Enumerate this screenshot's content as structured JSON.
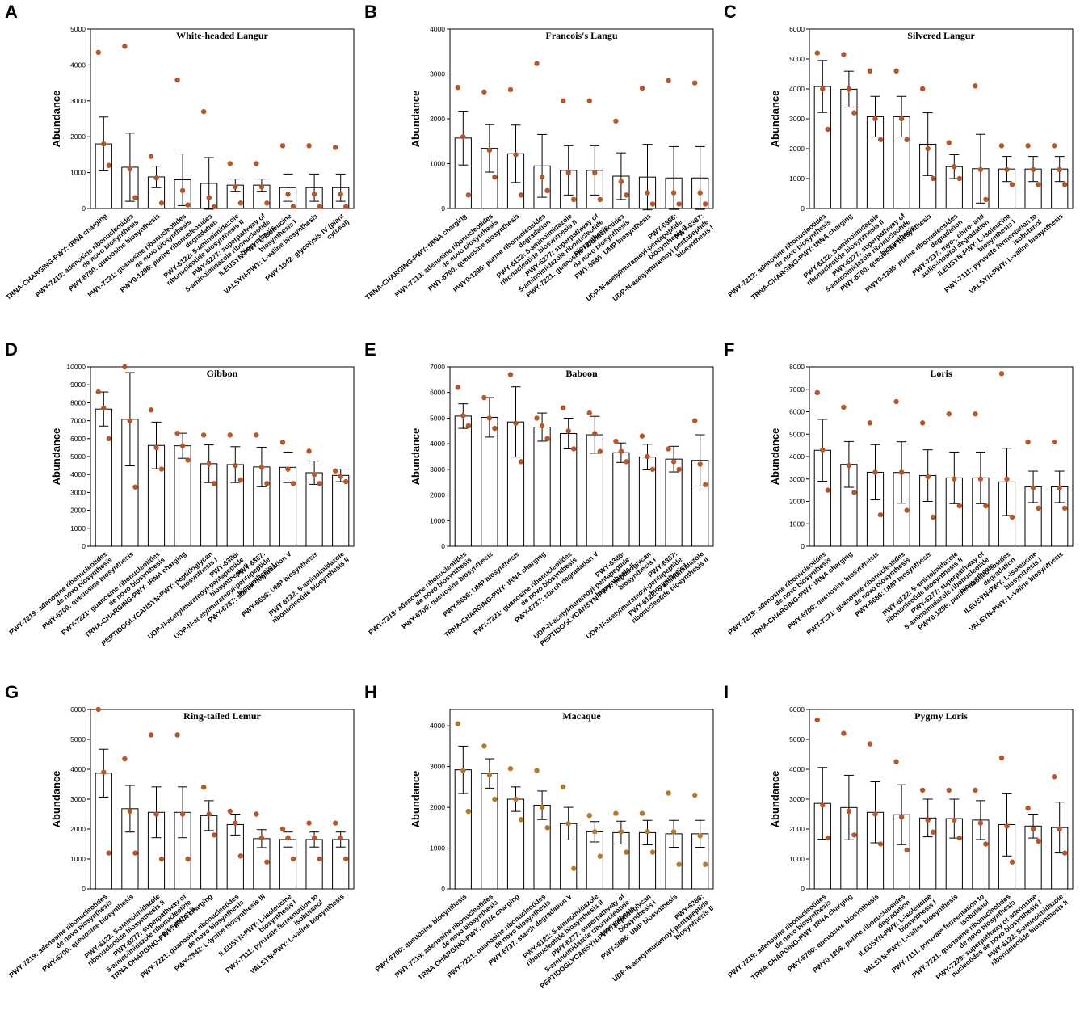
{
  "chart_data": [
    {
      "panel": "A",
      "type": "bar",
      "title": "White-headed Langur",
      "y_label": "Abundance",
      "color": "#b5572e",
      "ylim": [
        0,
        5000
      ],
      "yticks": [
        0,
        1000,
        2000,
        3000,
        4000,
        5000
      ],
      "categories": [
        "TRNA-CHARGING-PWY: tRNA charging",
        "PWY-7219: adenosine ribonucleotides de novo biosynthesis",
        "PWY-6700: queuosine biosynthesis",
        "PWY-7221: guanosine ribonucleotides de novo biosynthesis",
        "PWY0-1296: purine ribonucleosides degradation",
        "PWY-6122: 5-aminoimidazole ribonucleotide biosynthesis II",
        "PWY-6277: superpathway of 5-aminoimidazole ribonucleotide biosynthesis",
        "ILEUSYN-PWY: L-isoleucine biosynthesis I",
        "VALSYN-PWY: L-valine biosynthesis",
        "PWY-1042: glycolysis IV (plant cytosol)"
      ],
      "values": [
        1800,
        1150,
        880,
        800,
        700,
        650,
        650,
        580,
        580,
        580
      ],
      "errors": [
        750,
        950,
        300,
        720,
        720,
        170,
        170,
        380,
        380,
        380
      ],
      "points": [
        [
          4350,
          1800,
          1200
        ],
        [
          4520,
          1100,
          300
        ],
        [
          1450,
          850,
          150
        ],
        [
          3580,
          500,
          100
        ],
        [
          2700,
          300,
          50
        ],
        [
          1250,
          600,
          150
        ],
        [
          1250,
          600,
          150
        ],
        [
          1750,
          400,
          50
        ],
        [
          1750,
          400,
          50
        ],
        [
          1700,
          400,
          50
        ]
      ]
    },
    {
      "panel": "B",
      "type": "bar",
      "title": "Francois's Langu",
      "y_label": "Abundance",
      "color": "#b5572e",
      "ylim": [
        0,
        4000
      ],
      "yticks": [
        0,
        1000,
        2000,
        3000,
        4000
      ],
      "categories": [
        "TRNA-CHARGING-PWY: tRNA charging",
        "PWY-7219: adenosine ribonucleotides de novo biosynthesis",
        "PWY-6700: queuosine biosynthesis",
        "PWY0-1296: purine ribonucleosides degradation",
        "PWY-6122: 5-aminoimidazole ribonucleotide biosynthesis II",
        "PWY-6277: superpathway of 5-aminoimidazole ribonucleotide biosynthesis",
        "PWY-7221: guanosine ribonucleotides de novo biosynthesis",
        "PWY-5686: UMP biosynthesis",
        "PWY-6386: UDP-N-acetylmuramoyl-pentapeptide biosynthesis II",
        "PWY-6387: UDP-N-acetylmuramoyl-pentapeptide biosynthesis I"
      ],
      "values": [
        1570,
        1340,
        1220,
        950,
        850,
        850,
        720,
        700,
        680,
        680
      ],
      "errors": [
        600,
        530,
        640,
        700,
        550,
        550,
        520,
        730,
        700,
        700
      ],
      "points": [
        [
          2700,
          1600,
          300
        ],
        [
          2600,
          1300,
          700
        ],
        [
          2650,
          1200,
          300
        ],
        [
          3230,
          700,
          400
        ],
        [
          2400,
          800,
          200
        ],
        [
          2400,
          800,
          200
        ],
        [
          1950,
          600,
          300
        ],
        [
          2680,
          350,
          100
        ],
        [
          2850,
          350,
          100
        ],
        [
          2800,
          350,
          100
        ]
      ]
    },
    {
      "panel": "C",
      "type": "bar",
      "title": "Silvered Langur",
      "y_label": "Abundance",
      "color": "#b5572e",
      "ylim": [
        0,
        6000
      ],
      "yticks": [
        0,
        1000,
        2000,
        3000,
        4000,
        5000,
        6000
      ],
      "categories": [
        "PWY-7219: adenosine ribonucleotides de novo biosynthesis",
        "TRNA-CHARGING-PWY: tRNA charging",
        "PWY-6122: 5-aminoimidazole ribonucleotide biosynthesis II",
        "PWY-6277: superpathway of 5-aminoimidazole ribonucleotide biosynthesis",
        "PWY-6700: queuosine biosynthesis",
        "PWY0-1296: purine ribonucleosides degradation",
        "PWY-7237: myo-, chiro- and scillo-inositol degradation",
        "ILEUSYN-PWY: L-isoleucine biosynthesis I",
        "PWY-7111: pyruvate fermentation to isobutanol",
        "VALSYN-PWY: L-valine biosynthesis"
      ],
      "values": [
        4080,
        3990,
        3070,
        3070,
        2150,
        1400,
        1330,
        1320,
        1320,
        1320
      ],
      "errors": [
        870,
        600,
        680,
        680,
        1050,
        400,
        1150,
        420,
        420,
        420
      ],
      "points": [
        [
          5200,
          4000,
          2650
        ],
        [
          5150,
          4000,
          3200
        ],
        [
          4600,
          3000,
          2300
        ],
        [
          4600,
          3000,
          2300
        ],
        [
          4000,
          2000,
          1000
        ],
        [
          2200,
          1400,
          1000
        ],
        [
          4100,
          1300,
          300
        ],
        [
          2100,
          1300,
          800
        ],
        [
          2100,
          1300,
          800
        ],
        [
          2100,
          1300,
          800
        ]
      ]
    },
    {
      "panel": "D",
      "type": "bar",
      "title": "Gibbon",
      "y_label": "Abundance",
      "color": "#b5572e",
      "ylim": [
        0,
        10000
      ],
      "yticks": [
        0,
        1000,
        2000,
        3000,
        4000,
        5000,
        6000,
        7000,
        8000,
        9000,
        10000
      ],
      "categories": [
        "PWY-7219: adenosine ribonucleotides de novo biosynthesis",
        "PWY-6700: queuosine biosynthesis",
        "PWY-7221: guanosine ribonucleotides de novo biosynthesis",
        "TRNA-CHARGING-PWY: tRNA charging",
        "PEPTIDOGLYCANSYN-PWY: peptidoglycan biosynthesis I",
        "PWY-6386: UDP-N-acetylmuramoyl-pentapeptide biosynthesis II",
        "PWY-6387: UDP-N-acetylmuramoyl-pentapeptide biosynthesis I",
        "PWY-6737: starch degradation V",
        "PWY-5686: UMP biosynthesis",
        "PWY-6122: 5-aminoimidazole ribonucleotide biosynthesis II"
      ],
      "values": [
        7650,
        7080,
        5620,
        5600,
        4600,
        4550,
        4420,
        4400,
        4100,
        3950
      ],
      "errors": [
        950,
        2600,
        1300,
        700,
        1050,
        1000,
        1100,
        850,
        650,
        350
      ],
      "points": [
        [
          8600,
          7700,
          6000
        ],
        [
          10000,
          7000,
          3300
        ],
        [
          7600,
          5500,
          4300
        ],
        [
          6300,
          5600,
          4800
        ],
        [
          6200,
          4600,
          3500
        ],
        [
          6200,
          4500,
          3700
        ],
        [
          6200,
          4400,
          3500
        ],
        [
          5800,
          4300,
          3500
        ],
        [
          5300,
          4000,
          3500
        ],
        [
          4200,
          3900,
          3600
        ]
      ]
    },
    {
      "panel": "E",
      "type": "bar",
      "title": "Baboon",
      "y_label": "Abundance",
      "color": "#b5572e",
      "ylim": [
        0,
        7000
      ],
      "yticks": [
        0,
        1000,
        2000,
        3000,
        4000,
        5000,
        6000,
        7000
      ],
      "categories": [
        "PWY-7219: adenosine ribonucleotides de novo biosynthesis",
        "PWY-6700: queuosine biosynthesis",
        "PWY-5686: UMP biosynthesis",
        "TRNA-CHARGING-PWY: tRNA charging",
        "PWY-7221: guanosine ribonucleotides de novo biosynthesis",
        "PWY-6737: starch degradation V",
        "PWY-6386: UDP-N-acetylmuramoyl-pentapeptide biosynthesis II",
        "PEPTIDOGLYCANSYN-PWY: peptidoglycan biosynthesis I",
        "PWY-6387: UDP-N-acetylmuramoyl-pentapeptide biosynthesis I",
        "PWY-6122: 5-aminoimidazole ribonucleotide biosynthesis II"
      ],
      "values": [
        5080,
        5030,
        4850,
        4650,
        4400,
        4350,
        3650,
        3480,
        3400,
        3350
      ],
      "errors": [
        480,
        770,
        1370,
        550,
        600,
        720,
        380,
        500,
        500,
        1000
      ],
      "points": [
        [
          6200,
          5100,
          4700
        ],
        [
          5800,
          5000,
          4600
        ],
        [
          6700,
          4800,
          3300
        ],
        [
          5000,
          4700,
          4200
        ],
        [
          5400,
          4500,
          3800
        ],
        [
          5200,
          4400,
          3700
        ],
        [
          4100,
          3700,
          3300
        ],
        [
          4300,
          3500,
          3000
        ],
        [
          3800,
          3300,
          3000
        ],
        [
          4900,
          3200,
          2400
        ]
      ]
    },
    {
      "panel": "F",
      "type": "bar",
      "title": "Loris",
      "y_label": "Abundance",
      "color": "#b5572e",
      "ylim": [
        0,
        8000
      ],
      "yticks": [
        0,
        1000,
        2000,
        3000,
        4000,
        5000,
        6000,
        7000,
        8000
      ],
      "categories": [
        "PWY-7219: adenosine ribonucleotides de novo biosynthesis",
        "TRNA-CHARGING-PWY: tRNA charging",
        "PWY-6700: queuosine biosynthesis",
        "PWY-7221: guanosine ribonucleotides de novo biosynthesis",
        "PWY-5686: UMP biosynthesis",
        "PWY-6122: 5-aminoimidazole ribonucleotide biosynthesis II",
        "PWY-6277: superpathway of 5-aminoimidazole ribonucleotide biosynthesis",
        "PWY0-1296: purine ribonucleosides degradation",
        "ILEUSYN-PWY: L-isoleucine biosynthesis I",
        "VALSYN-PWY: L-valine biosynthesis"
      ],
      "values": [
        4280,
        3650,
        3300,
        3290,
        3150,
        3050,
        3050,
        2870,
        2650,
        2650
      ],
      "errors": [
        1380,
        1020,
        1230,
        1370,
        1150,
        1150,
        1150,
        1500,
        700,
        700
      ],
      "points": [
        [
          6850,
          4300,
          2500
        ],
        [
          6200,
          3600,
          2400
        ],
        [
          5500,
          3300,
          1400
        ],
        [
          6450,
          3300,
          1600
        ],
        [
          5500,
          3100,
          1300
        ],
        [
          5900,
          3000,
          1800
        ],
        [
          5900,
          3000,
          1800
        ],
        [
          7700,
          3000,
          1300
        ],
        [
          4650,
          2600,
          1700
        ],
        [
          4650,
          2600,
          1700
        ]
      ]
    },
    {
      "panel": "G",
      "type": "bar",
      "title": "Ring-tailed Lemur",
      "y_label": "Abundance",
      "color": "#b5572e",
      "ylim": [
        0,
        6000
      ],
      "yticks": [
        0,
        1000,
        2000,
        3000,
        4000,
        5000,
        6000
      ],
      "categories": [
        "PWY-7219: adenosine ribonucleotides de novo biosynthesis",
        "PWY-6700: queuosine biosynthesis",
        "PWY-6122: 5-aminoimidazole ribonucleotide biosynthesis II",
        "PWY-6277: superpathway of 5-aminoimidazole ribonucleotide biosynthesis",
        "TRNA-CHARGING-PWY: tRNA charging",
        "PWY-7221: guanosine ribonucleotides de novo biosynthesis",
        "PWY-2942: L-lysine biosynthesis III",
        "ILEUSYN-PWY: L-isoleucine biosynthesis I",
        "PWY-7111: pyruvate fermentation to isobutanol",
        "VALSYN-PWY: L-valine biosynthesis"
      ],
      "values": [
        3870,
        2680,
        2560,
        2560,
        2450,
        2150,
        1680,
        1650,
        1650,
        1650
      ],
      "errors": [
        800,
        780,
        850,
        850,
        500,
        350,
        300,
        250,
        250,
        250
      ],
      "points": [
        [
          6000,
          3900,
          1200
        ],
        [
          4350,
          2600,
          1200
        ],
        [
          5150,
          2500,
          1000
        ],
        [
          5150,
          2500,
          1000
        ],
        [
          3400,
          2500,
          1800
        ],
        [
          2600,
          2200,
          1100
        ],
        [
          2500,
          1700,
          900
        ],
        [
          2000,
          1700,
          1000
        ],
        [
          2200,
          1700,
          1000
        ],
        [
          2200,
          1700,
          1000
        ]
      ]
    },
    {
      "panel": "H",
      "type": "bar",
      "title": "Macaque",
      "y_label": "Abundance",
      "color": "#b07a2f",
      "ylim": [
        0,
        4400
      ],
      "yticks": [
        0,
        1000,
        2000,
        3000,
        4000
      ],
      "categories": [
        "PWY-6700: queuosine biosynthesis",
        "PWY-7219: adenosine ribonucleotides de novo biosynthesis",
        "TRNA-CHARGING-PWY: tRNA charging",
        "PWY-7221: guanosine ribonucleotides de novo biosynthesis",
        "PWY-6737: starch degradation V",
        "PWY-6122: 5-aminoimidazole ribonucleotide biosynthesis II",
        "PWY-6277: superpathway of 5-aminoimidazole ribonucleotide biosynthesis",
        "PEPTIDOGLYCANSYN-PWY: peptidoglycan biosynthesis I",
        "PWY-5686: UMP biosynthesis",
        "PWY-6386: UDP-N-acetylmuramoyl-pentapeptide biosynthesis II"
      ],
      "values": [
        2920,
        2830,
        2200,
        2050,
        1600,
        1400,
        1380,
        1380,
        1350,
        1350
      ],
      "errors": [
        580,
        360,
        300,
        350,
        400,
        250,
        280,
        300,
        330,
        330
      ],
      "points": [
        [
          4050,
          2900,
          1900
        ],
        [
          3500,
          2800,
          2200
        ],
        [
          2950,
          2200,
          1700
        ],
        [
          2900,
          2000,
          1500
        ],
        [
          2500,
          1600,
          500
        ],
        [
          1800,
          1400,
          800
        ],
        [
          1850,
          1400,
          900
        ],
        [
          1850,
          1400,
          900
        ],
        [
          2350,
          1400,
          600
        ],
        [
          2300,
          1300,
          600
        ]
      ]
    },
    {
      "panel": "I",
      "type": "bar",
      "title": "Pygmy Loris",
      "y_label": "Abundance",
      "color": "#b5572e",
      "ylim": [
        0,
        6000
      ],
      "yticks": [
        0,
        1000,
        2000,
        3000,
        4000,
        5000,
        6000
      ],
      "categories": [
        "PWY-7219: adenosine ribonucleotides de novo biosynthesis",
        "TRNA-CHARGING-PWY: tRNA charging",
        "PWY-6700: queuosine biosynthesis",
        "PWY0-1296: purine ribonucleosides degradation",
        "ILEUSYN-PWY: L-isoleucine biosynthesis I",
        "VALSYN-PWY: L-valine biosynthesis",
        "PWY-7111: pyruvate fermentation to isobutanol",
        "PWY-7221: guanosine ribonucleotides de novo biosynthesis",
        "PWY-7229: superpathway of adenosine nucleotides de novo biosynthesis I",
        "PWY-6122: 5-aminoimidazole ribonucleotide biosynthesis II"
      ],
      "values": [
        2860,
        2720,
        2560,
        2480,
        2370,
        2350,
        2300,
        2150,
        2100,
        2050
      ],
      "errors": [
        1200,
        1080,
        1020,
        1000,
        630,
        650,
        650,
        1050,
        400,
        850
      ],
      "points": [
        [
          5650,
          2800,
          1700
        ],
        [
          5200,
          2600,
          1800
        ],
        [
          4850,
          2500,
          1500
        ],
        [
          4250,
          2400,
          1300
        ],
        [
          3300,
          2300,
          1900
        ],
        [
          3300,
          2300,
          1700
        ],
        [
          3300,
          2200,
          1500
        ],
        [
          4380,
          2100,
          900
        ],
        [
          2700,
          2000,
          1600
        ],
        [
          3750,
          2000,
          1200
        ]
      ]
    }
  ]
}
